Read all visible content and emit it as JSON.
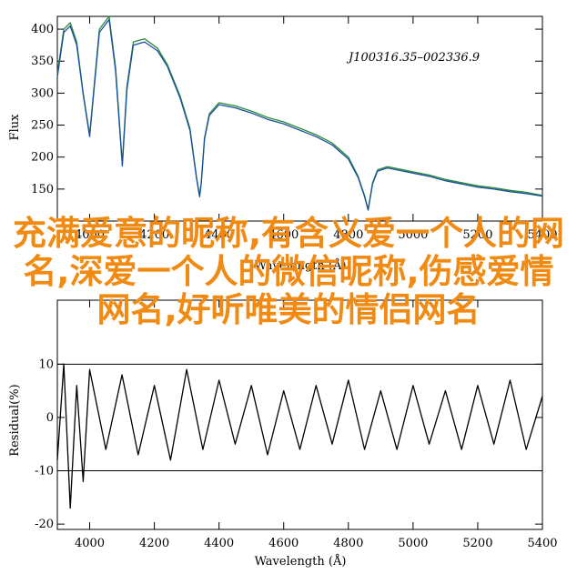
{
  "overlay_title": "充满爱意的昵称,有含义爱一个人的网名,深爱一个人的微信昵称,伤感爱情网名,好听唯美的情侣网名",
  "chart_data": [
    {
      "type": "line",
      "title": "",
      "annotation": "J100316.35–002336.9",
      "xlabel": "Wavelength (Å)",
      "ylabel": "Flux",
      "xlim": [
        3900,
        5400
      ],
      "ylim": [
        100,
        420
      ],
      "xticks": [
        4000,
        4200,
        4400,
        4600,
        4800,
        5000,
        5200,
        5400
      ],
      "yticks": [
        150,
        200,
        250,
        300,
        350,
        400
      ],
      "series": [
        {
          "color": "#2a8a3a",
          "x": [
            3900,
            3920,
            3940,
            3960,
            3980,
            4000,
            4030,
            4060,
            4080,
            4101,
            4115,
            4135,
            4170,
            4210,
            4240,
            4280,
            4310,
            4330,
            4340,
            4345,
            4355,
            4370,
            4400,
            4450,
            4500,
            4550,
            4600,
            4650,
            4700,
            4750,
            4800,
            4830,
            4850,
            4861,
            4875,
            4890,
            4920,
            4950,
            5000,
            5050,
            5100,
            5150,
            5200,
            5250,
            5300,
            5350,
            5400
          ],
          "y": [
            330,
            400,
            410,
            380,
            300,
            235,
            400,
            420,
            340,
            190,
            310,
            380,
            385,
            370,
            345,
            295,
            245,
            170,
            140,
            160,
            230,
            268,
            285,
            280,
            272,
            262,
            255,
            245,
            235,
            222,
            200,
            170,
            140,
            118,
            160,
            180,
            185,
            182,
            177,
            172,
            165,
            160,
            155,
            152,
            148,
            145,
            140
          ]
        },
        {
          "color": "#1a4f9c",
          "x": [
            3900,
            3920,
            3940,
            3960,
            3980,
            4000,
            4030,
            4060,
            4080,
            4101,
            4115,
            4135,
            4170,
            4210,
            4240,
            4280,
            4310,
            4330,
            4340,
            4345,
            4355,
            4370,
            4400,
            4450,
            4500,
            4550,
            4600,
            4650,
            4700,
            4750,
            4800,
            4830,
            4850,
            4861,
            4875,
            4890,
            4920,
            4950,
            5000,
            5050,
            5100,
            5150,
            5200,
            5250,
            5300,
            5350,
            5400
          ],
          "y": [
            325,
            395,
            405,
            375,
            298,
            232,
            395,
            415,
            335,
            186,
            305,
            375,
            380,
            366,
            342,
            292,
            242,
            168,
            138,
            158,
            228,
            265,
            282,
            277,
            269,
            259,
            252,
            242,
            232,
            219,
            197,
            168,
            138,
            117,
            158,
            178,
            183,
            180,
            175,
            170,
            163,
            158,
            153,
            150,
            146,
            143,
            139
          ]
        }
      ]
    },
    {
      "type": "line",
      "title": "",
      "xlabel": "Wavelength (Å)",
      "ylabel": "Residual(%)",
      "xlim": [
        3900,
        5400
      ],
      "ylim": [
        -21,
        22
      ],
      "xticks": [
        4000,
        4200,
        4400,
        4600,
        4800,
        5000,
        5200,
        5400
      ],
      "yticks": [
        -20,
        -10,
        0,
        10
      ],
      "hlines": [
        10,
        -10
      ],
      "series": [
        {
          "color": "#000000",
          "x": [
            3900,
            3920,
            3940,
            3960,
            3980,
            4000,
            4050,
            4100,
            4150,
            4200,
            4250,
            4300,
            4350,
            4400,
            4450,
            4500,
            4550,
            4600,
            4650,
            4700,
            4750,
            4800,
            4850,
            4900,
            4950,
            5000,
            5050,
            5100,
            5150,
            5200,
            5250,
            5300,
            5350,
            5400
          ],
          "y": [
            -8,
            10,
            -17,
            6,
            -12,
            9,
            -6,
            8,
            -7,
            6,
            -8,
            9,
            -6,
            7,
            -5,
            6,
            -7,
            5,
            -6,
            6,
            -5,
            7,
            -6,
            5,
            -6,
            6,
            -5,
            5,
            -6,
            6,
            -5,
            7,
            -6,
            4
          ]
        }
      ]
    }
  ]
}
